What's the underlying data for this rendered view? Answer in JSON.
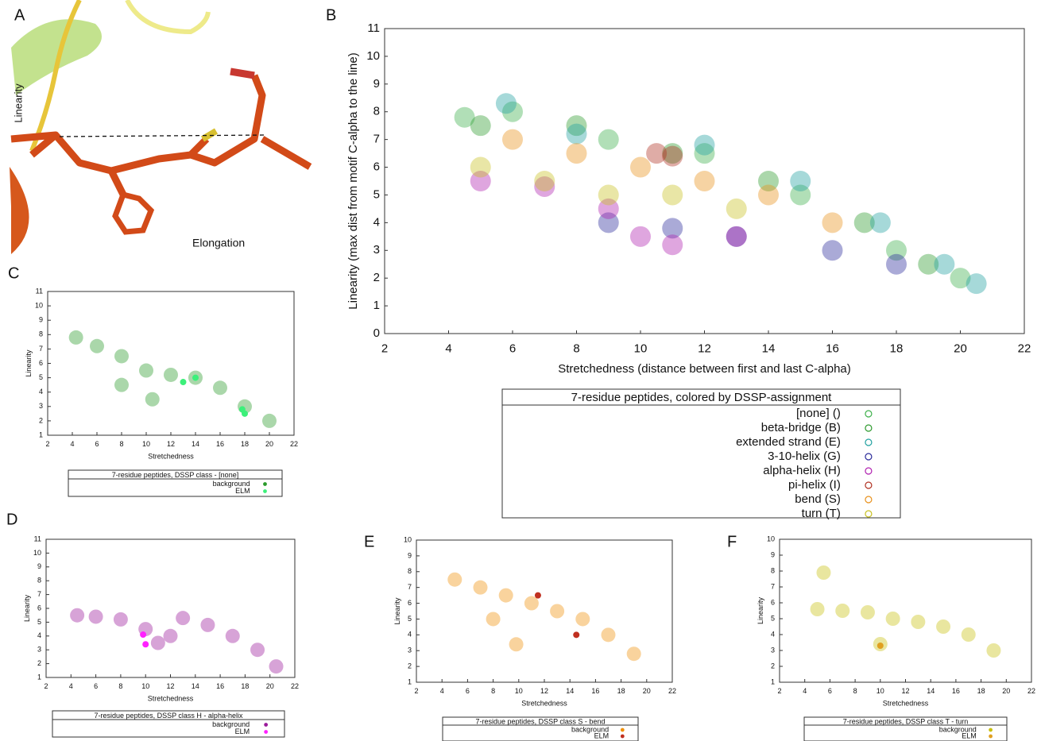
{
  "panel_a": {
    "label": "A",
    "linearity": "Linearity",
    "elongation": "Elongation"
  },
  "chart_data": [
    {
      "type": "scatter",
      "panel_label": "B",
      "xlabel": "Stretchedness (distance between first and last C-alpha)",
      "ylabel": "Linearity (max dist from motif C-alpha to the line)",
      "xlim": [
        2,
        22
      ],
      "ylim": [
        0,
        11
      ],
      "xticks": [
        2,
        4,
        6,
        8,
        10,
        12,
        14,
        16,
        18,
        20,
        22
      ],
      "yticks": [
        0,
        1,
        2,
        3,
        4,
        5,
        6,
        7,
        8,
        9,
        10,
        11
      ],
      "legend_title": "7-residue peptides, colored by DSSP-assignment",
      "series": [
        {
          "name": "[none] ()",
          "color": "#3cb04a",
          "x": [
            4.5,
            6,
            9,
            12,
            15,
            18,
            20
          ],
          "y": [
            7.8,
            8,
            7,
            6.5,
            5,
            3,
            2
          ]
        },
        {
          "name": "beta-bridge (B)",
          "color": "#2e9a2e",
          "x": [
            5,
            8,
            11,
            14,
            17,
            19
          ],
          "y": [
            7.5,
            7.5,
            6.5,
            5.5,
            4,
            2.5
          ]
        },
        {
          "name": "extended strand (E)",
          "color": "#20a0a0",
          "x": [
            5.8,
            8,
            12,
            15,
            17.5,
            19.5,
            20.5
          ],
          "y": [
            8.3,
            7.2,
            6.8,
            5.5,
            4,
            2.5,
            1.8
          ]
        },
        {
          "name": "3-10-helix (G)",
          "color": "#2a2a9a",
          "x": [
            9,
            11,
            13,
            16,
            18
          ],
          "y": [
            4,
            3.8,
            3.5,
            3,
            2.5
          ]
        },
        {
          "name": "alpha-helix (H)",
          "color": "#b020b0",
          "x": [
            5,
            7,
            9,
            10,
            11,
            13
          ],
          "y": [
            5.5,
            5.3,
            4.5,
            3.5,
            3.2,
            3.5
          ]
        },
        {
          "name": "pi-helix (I)",
          "color": "#b03020",
          "x": [
            10.5,
            11
          ],
          "y": [
            6.5,
            6.4
          ]
        },
        {
          "name": "bend (S)",
          "color": "#e8901a",
          "x": [
            6,
            8,
            10,
            12,
            14,
            16
          ],
          "y": [
            7,
            6.5,
            6,
            5.5,
            5,
            4
          ]
        },
        {
          "name": "turn (T)",
          "color": "#c8c020",
          "x": [
            5,
            7,
            9,
            11,
            13
          ],
          "y": [
            6,
            5.5,
            5,
            5,
            4.5
          ]
        }
      ]
    },
    {
      "type": "scatter",
      "panel_label": "C",
      "xlabel": "Stretchedness",
      "ylabel": "Linearity",
      "xlim": [
        2,
        22
      ],
      "ylim": [
        1,
        11
      ],
      "xticks": [
        2,
        4,
        6,
        8,
        10,
        12,
        14,
        16,
        18,
        20,
        22
      ],
      "yticks": [
        1,
        2,
        3,
        4,
        5,
        6,
        7,
        8,
        9,
        10,
        11
      ],
      "legend_title": "7-residue peptides, DSSP class  - [none]",
      "series": [
        {
          "name": "background",
          "color": "#2a9a2a",
          "x": [
            4.3,
            6,
            8,
            10,
            12,
            14,
            16,
            18,
            20,
            10.5,
            8
          ],
          "y": [
            7.8,
            7.2,
            6.5,
            5.5,
            5.2,
            5,
            4.3,
            3,
            2,
            3.5,
            4.5
          ]
        },
        {
          "name": "ELM",
          "color": "#3cf07a",
          "x": [
            17.8,
            18,
            14,
            13
          ],
          "y": [
            2.8,
            2.5,
            5,
            4.7
          ]
        }
      ]
    },
    {
      "type": "scatter",
      "panel_label": "D",
      "xlabel": "Stretchedness",
      "ylabel": "Linearity",
      "xlim": [
        2,
        22
      ],
      "ylim": [
        1,
        11
      ],
      "xticks": [
        2,
        4,
        6,
        8,
        10,
        12,
        14,
        16,
        18,
        20,
        22
      ],
      "yticks": [
        1,
        2,
        3,
        4,
        5,
        6,
        7,
        8,
        9,
        10,
        11
      ],
      "legend_title": "7-residue peptides, DSSP class H - alpha-helix",
      "series": [
        {
          "name": "background",
          "color": "#9a1a9a",
          "x": [
            4.5,
            6,
            8,
            10,
            11,
            12,
            13,
            15,
            17,
            19,
            20.5
          ],
          "y": [
            5.5,
            5.4,
            5.2,
            4.5,
            3.5,
            4,
            5.3,
            4.8,
            4,
            3,
            1.8
          ]
        },
        {
          "name": "ELM",
          "color": "#ff20ff",
          "x": [
            10,
            9.8
          ],
          "y": [
            3.4,
            4.1
          ]
        }
      ]
    },
    {
      "type": "scatter",
      "panel_label": "E",
      "xlabel": "Stretchedness",
      "ylabel": "Linearity",
      "xlim": [
        2,
        22
      ],
      "ylim": [
        1,
        10
      ],
      "xticks": [
        2,
        4,
        6,
        8,
        10,
        12,
        14,
        16,
        18,
        20,
        22
      ],
      "yticks": [
        1,
        2,
        3,
        4,
        5,
        6,
        7,
        8,
        9,
        10
      ],
      "legend_title": "7-residue peptides, DSSP class S - bend",
      "series": [
        {
          "name": "background",
          "color": "#f0900a",
          "x": [
            5,
            7,
            9,
            11,
            13,
            15,
            17,
            19,
            9.8,
            8
          ],
          "y": [
            7.5,
            7,
            6.5,
            6,
            5.5,
            5,
            4,
            2.8,
            3.4,
            5
          ]
        },
        {
          "name": "ELM",
          "color": "#c03020",
          "x": [
            11.5,
            14.5
          ],
          "y": [
            6.5,
            4
          ]
        }
      ]
    },
    {
      "type": "scatter",
      "panel_label": "F",
      "xlabel": "Stretchedness",
      "ylabel": "Linearity",
      "xlim": [
        2,
        22
      ],
      "ylim": [
        1,
        10
      ],
      "xticks": [
        2,
        4,
        6,
        8,
        10,
        12,
        14,
        16,
        18,
        20,
        22
      ],
      "yticks": [
        1,
        2,
        3,
        4,
        5,
        6,
        7,
        8,
        9,
        10
      ],
      "legend_title": "7-residue peptides, DSSP class T - turn",
      "series": [
        {
          "name": "background",
          "color": "#c8c010",
          "x": [
            5.5,
            5,
            7,
            9,
            11,
            13,
            15,
            17,
            19,
            10
          ],
          "y": [
            7.9,
            5.6,
            5.5,
            5.4,
            5,
            4.8,
            4.5,
            4,
            3,
            3.4
          ]
        },
        {
          "name": "ELM",
          "color": "#e0a020",
          "x": [
            10
          ],
          "y": [
            3.3
          ]
        }
      ]
    }
  ]
}
